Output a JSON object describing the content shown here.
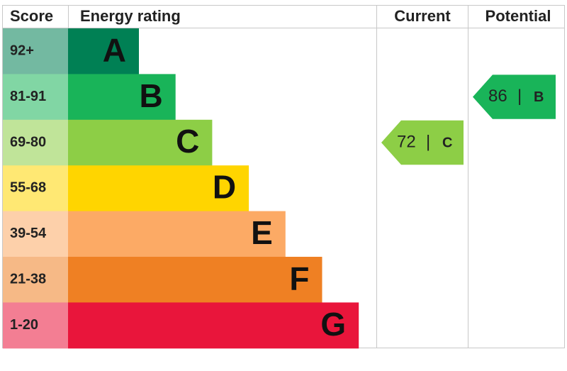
{
  "header": {
    "score": "Score",
    "energy_rating": "Energy rating",
    "current": "Current",
    "potential": "Potential"
  },
  "bands": [
    {
      "score": "92+",
      "letter": "A",
      "color": "#008054"
    },
    {
      "score": "81-91",
      "letter": "B",
      "color": "#19b459"
    },
    {
      "score": "69-80",
      "letter": "C",
      "color": "#8dce46"
    },
    {
      "score": "55-68",
      "letter": "D",
      "color": "#ffd500"
    },
    {
      "score": "39-54",
      "letter": "E",
      "color": "#fcaa65"
    },
    {
      "score": "21-38",
      "letter": "F",
      "color": "#ef8023"
    },
    {
      "score": "1-20",
      "letter": "G",
      "color": "#e9153b"
    }
  ],
  "current": {
    "score": 72,
    "separator": "|",
    "rating": "C"
  },
  "potential": {
    "score": 86,
    "separator": "|",
    "rating": "B"
  }
}
